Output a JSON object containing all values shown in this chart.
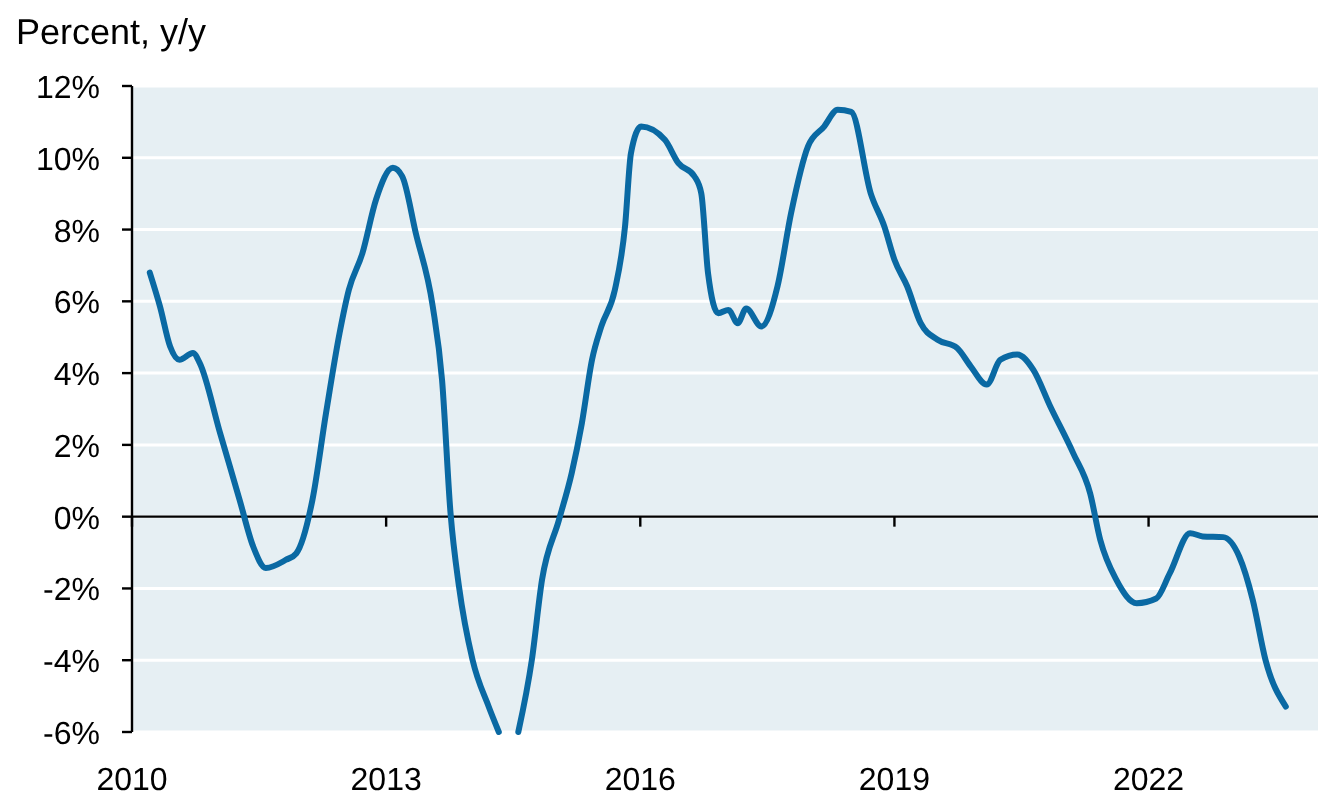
{
  "chart_data": {
    "type": "line",
    "ylabel": "Percent, y/y",
    "series": [
      {
        "color": "#0a69a3",
        "x": [
          2010.21,
          2010.33,
          2010.45,
          2010.56,
          2010.72,
          2010.8,
          2011.04,
          2011.27,
          2011.43,
          2011.58,
          2011.82,
          2011.94,
          2012.13,
          2012.29,
          2012.45,
          2012.56,
          2012.72,
          2012.88,
          2013.08,
          2013.19,
          2013.35,
          2013.55,
          2013.66,
          2013.76,
          2013.86,
          2014.02,
          2014.21,
          2014.33
        ],
        "values": [
          6.8,
          5.86,
          4.74,
          4.37,
          4.56,
          4.28,
          2.33,
          0.47,
          -0.83,
          -1.43,
          -1.2,
          -1.02,
          0.47,
          2.88,
          5.11,
          6.32,
          7.34,
          8.83,
          9.72,
          9.48,
          7.9,
          5.86,
          3.81,
          0.1,
          -1.95,
          -3.99,
          -5.29,
          -6.0
        ]
      },
      {
        "color": "#0a69a3",
        "x": [
          2014.56,
          2014.72,
          2014.84,
          2015.04,
          2015.19,
          2015.31,
          2015.43,
          2015.54,
          2015.7,
          2015.82,
          2015.89,
          2016.01,
          2016.29,
          2016.45,
          2016.64,
          2016.72,
          2016.8,
          2016.92,
          2017.04,
          2017.15,
          2017.25,
          2017.43,
          2017.62,
          2017.78,
          2017.98,
          2018.17,
          2018.33,
          2018.49,
          2018.72,
          2018.88,
          2019.0,
          2019.15,
          2019.31,
          2019.51,
          2019.74,
          2019.9,
          2020.09,
          2020.25,
          2020.45,
          2020.64,
          2020.84,
          2021.11,
          2021.31,
          2021.43,
          2021.62,
          2021.86,
          2022.09,
          2022.25,
          2022.49,
          2022.64,
          2022.88,
          2023.07,
          2023.23,
          2023.38,
          2023.62
        ],
        "values": [
          -6.0,
          -3.99,
          -1.76,
          -0.09,
          1.21,
          2.6,
          4.37,
          5.3,
          6.32,
          8.09,
          10.13,
          10.87,
          10.5,
          9.85,
          9.48,
          9.01,
          6.78,
          5.67,
          5.76,
          5.39,
          5.8,
          5.3,
          6.42,
          8.46,
          10.32,
          10.87,
          11.34,
          11.28,
          9.01,
          8.09,
          7.16,
          6.42,
          5.39,
          4.93,
          4.7,
          4.19,
          3.68,
          4.37,
          4.52,
          4.09,
          3.07,
          1.77,
          0.65,
          -0.65,
          -1.76,
          -2.41,
          -2.28,
          -1.58,
          -0.46,
          -0.55,
          -0.57,
          -1.11,
          -2.32,
          -3.99,
          -5.29
        ]
      }
    ],
    "xlim": [
      2010,
      2024
    ],
    "xticks": [
      2010,
      2013,
      2016,
      2019,
      2022
    ],
    "ylim": [
      -6,
      12
    ],
    "yticks": [
      {
        "value": -6,
        "label": "-6%"
      },
      {
        "value": -4,
        "label": "-4%"
      },
      {
        "value": -2,
        "label": "-2%"
      },
      {
        "value": 0,
        "label": "0%"
      },
      {
        "value": 2,
        "label": "2%"
      },
      {
        "value": 4,
        "label": "4%"
      },
      {
        "value": 6,
        "label": "6%"
      },
      {
        "value": 8,
        "label": "8%"
      },
      {
        "value": 10,
        "label": "10%"
      },
      {
        "value": 12,
        "label": "12%"
      }
    ],
    "grid": "y",
    "marker": "none",
    "line_style": "solid"
  }
}
